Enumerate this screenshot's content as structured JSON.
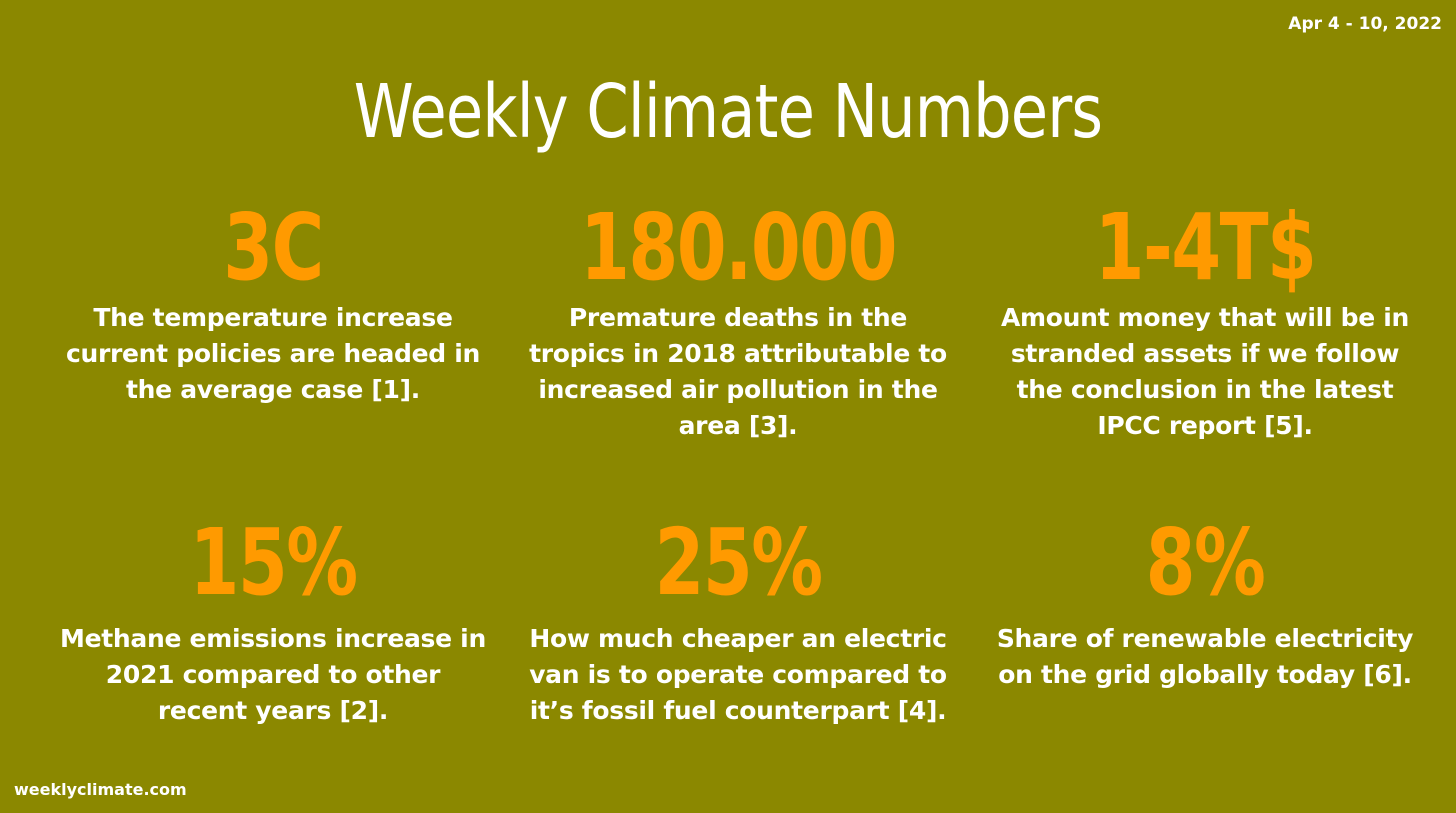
{
  "header": {
    "date_range": "Apr 4 - 10, 2022",
    "title": "Weekly Climate Numbers"
  },
  "stats": [
    {
      "value": "3C",
      "description": "The temperature increase current policies are headed in the average case [1]."
    },
    {
      "value": "180.000",
      "description": "Premature deaths in the tropics in 2018 attributable to increased air pollution in the area [3]."
    },
    {
      "value": "1-4T$",
      "description": "Amount money that will be in stranded assets if we follow the conclusion in the latest IPCC report [5]."
    },
    {
      "value": "15%",
      "description": "Methane emissions increase in 2021 compared to other recent years [2]."
    },
    {
      "value": "25%",
      "description": "How much cheaper an electric van is to operate compared to it’s fossil fuel counterpart [4]."
    },
    {
      "value": "8%",
      "description": "Share of renewable electricity on the grid globally today [6]."
    }
  ],
  "footer": {
    "site": "weeklyclimate.com"
  },
  "colors": {
    "background": "#8b8800",
    "accent": "#ff9a00",
    "text": "#ffffff"
  }
}
